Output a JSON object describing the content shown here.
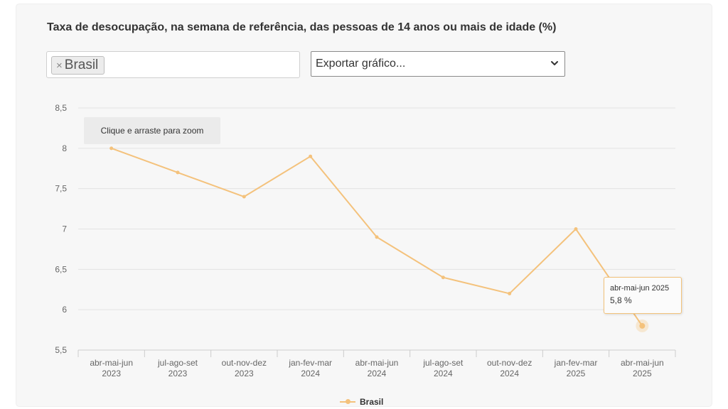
{
  "chart_data": {
    "type": "line",
    "title": "Taxa de desocupação, na semana de referência, das pessoas de 14 anos ou mais de idade (%)",
    "categories": [
      [
        "abr-mai-jun",
        "2023"
      ],
      [
        "jul-ago-set",
        "2023"
      ],
      [
        "out-nov-dez",
        "2023"
      ],
      [
        "jan-fev-mar",
        "2024"
      ],
      [
        "abr-mai-jun",
        "2024"
      ],
      [
        "jul-ago-set",
        "2024"
      ],
      [
        "out-nov-dez",
        "2024"
      ],
      [
        "jan-fev-mar",
        "2025"
      ],
      [
        "abr-mai-jun",
        "2025"
      ]
    ],
    "series": [
      {
        "name": "Brasil",
        "values": [
          8.0,
          7.7,
          7.4,
          7.9,
          6.9,
          6.4,
          6.2,
          7.0,
          5.8
        ]
      }
    ],
    "ylim": [
      5.5,
      8.5
    ],
    "yticks": [
      "5,5",
      "6",
      "6,5",
      "7",
      "7,5",
      "8",
      "8,5"
    ],
    "grid": true,
    "legend_position": "bottom-center",
    "color": "#f4c27c"
  },
  "controls": {
    "filter_tag": "Brasil",
    "remove_symbol": "×",
    "export_label": "Exportar gráfico..."
  },
  "zoom_hint": "Clique e arraste para zoom",
  "tooltip": {
    "category": "abr-mai-jun 2025",
    "value": "5,8 %"
  }
}
